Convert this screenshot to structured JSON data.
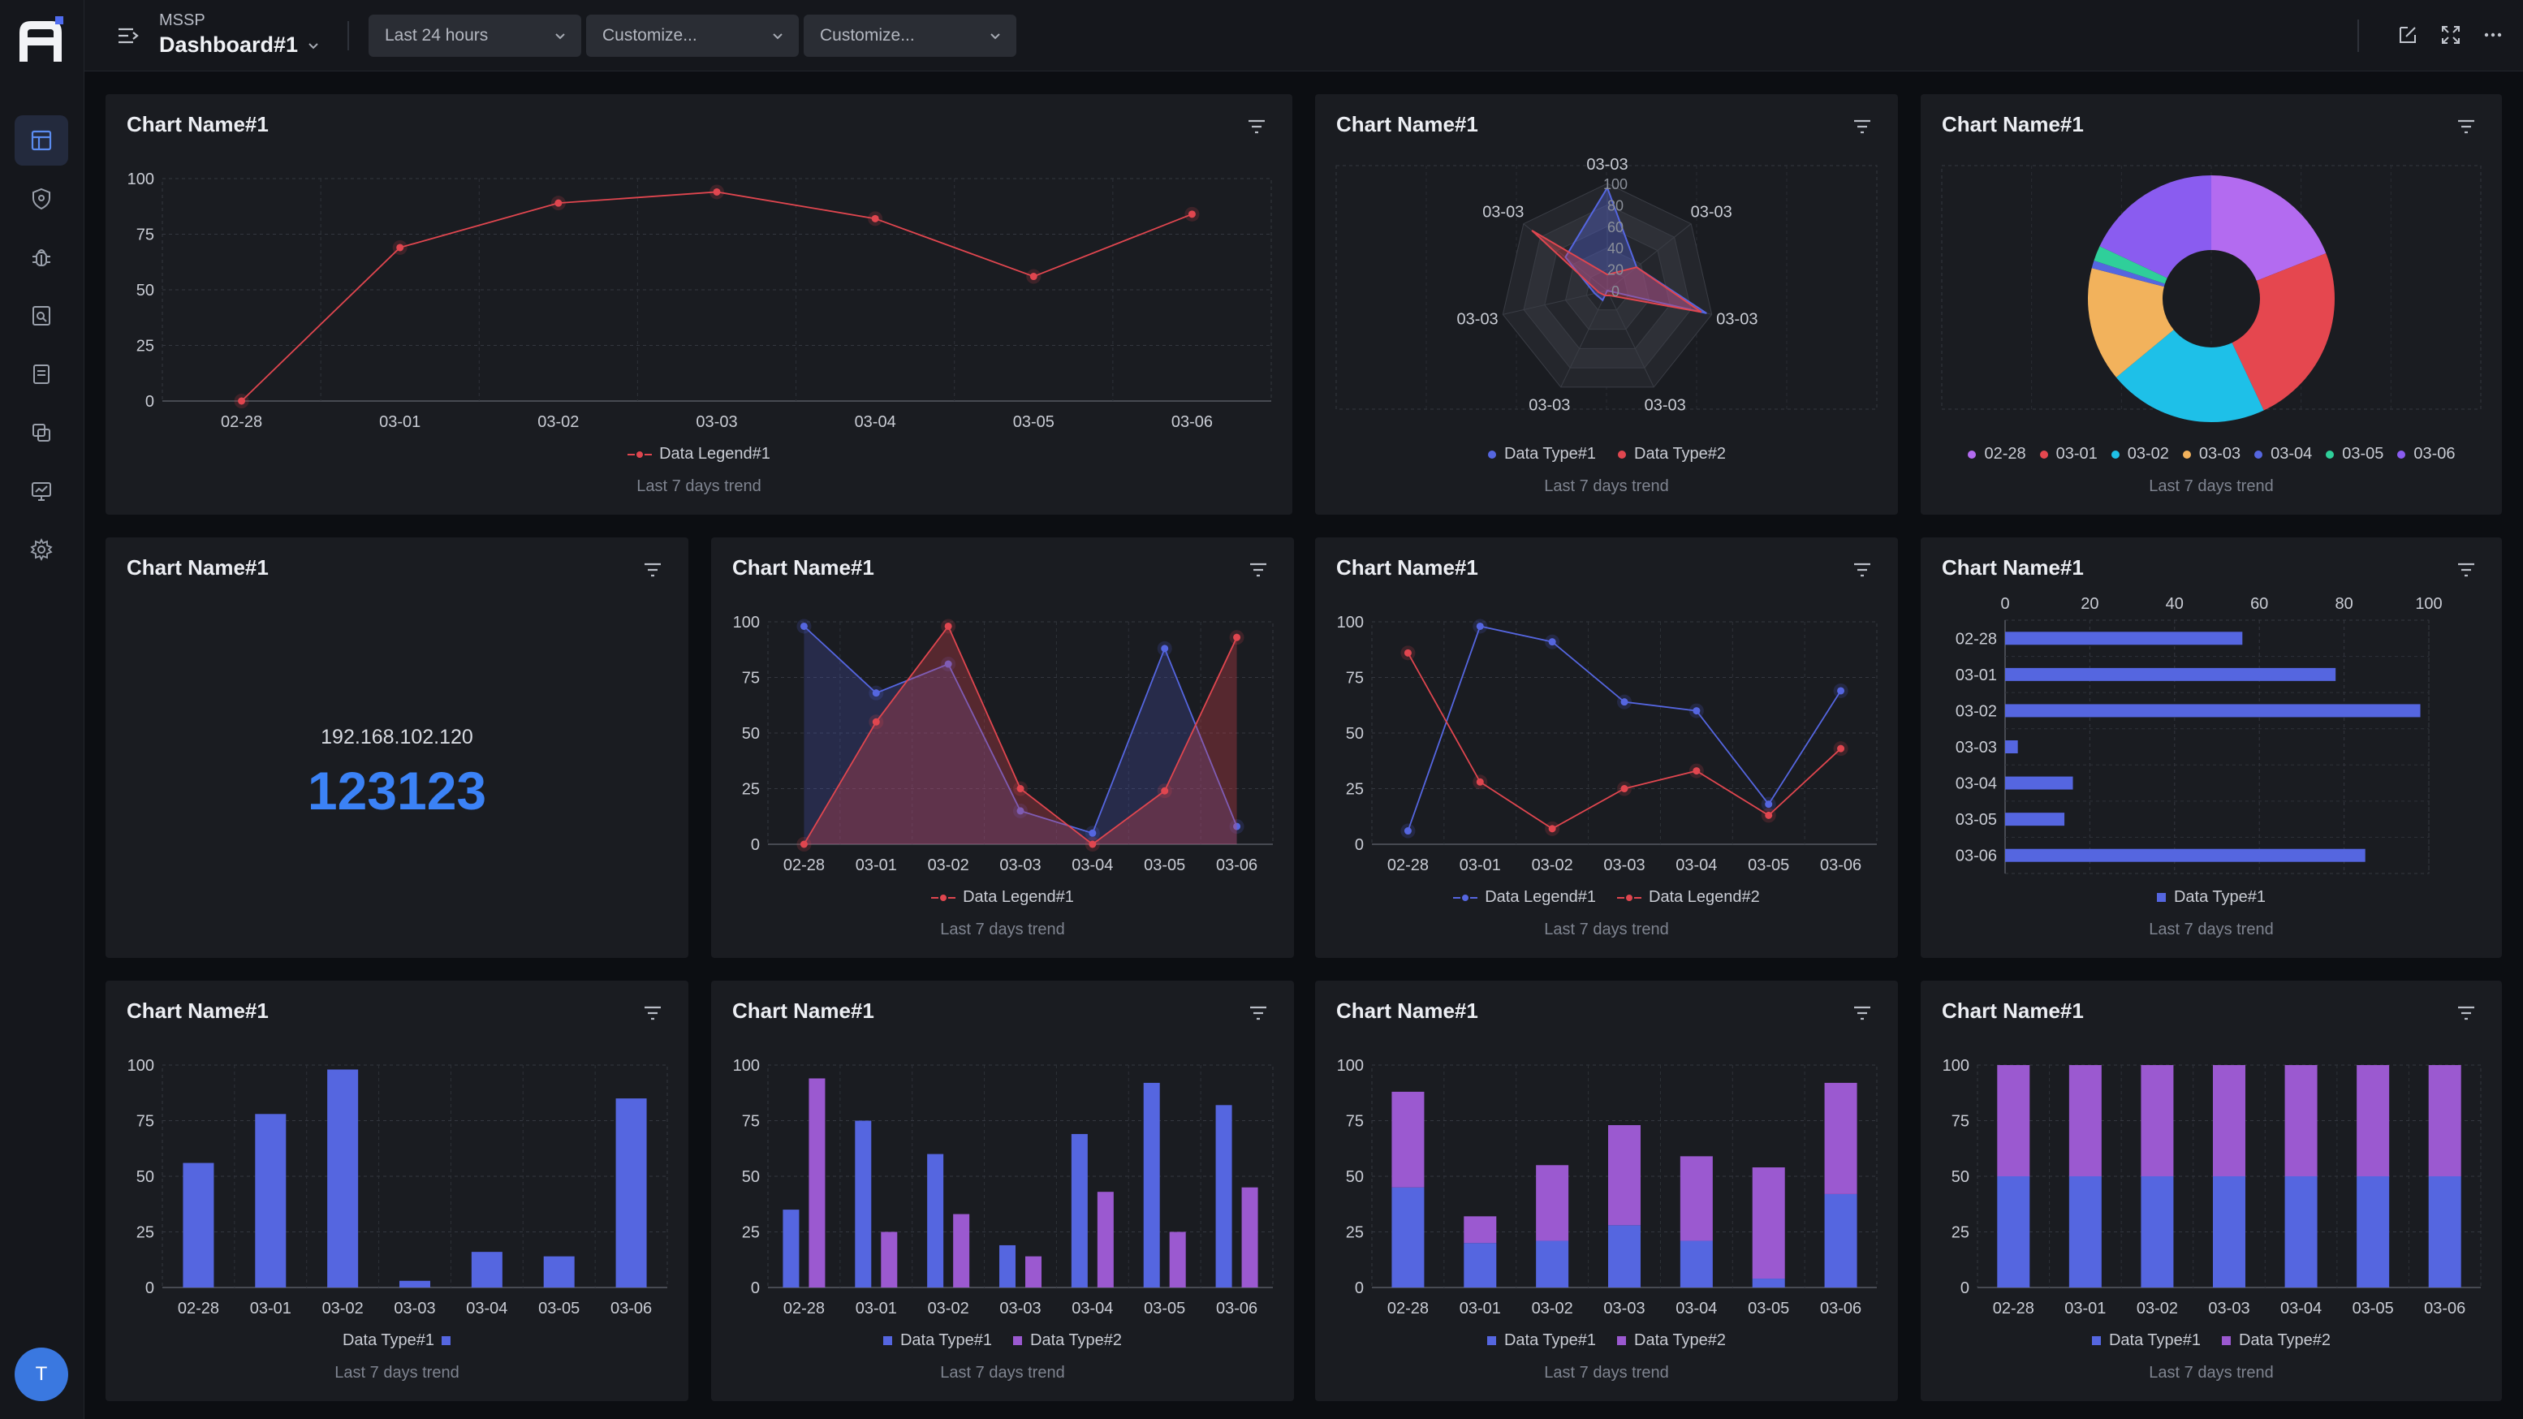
{
  "header": {
    "org": "MSSP",
    "dashboard": "Dashboard#1",
    "time_range": "Last 24 hours",
    "customize_1": "Customize...",
    "customize_2": "Customize..."
  },
  "sidebar": {
    "items": [
      "dashboard-icon",
      "shield-icon",
      "bug-icon",
      "search-doc-icon",
      "report-icon",
      "copy-icon",
      "monitor-icon",
      "settings-icon"
    ],
    "avatar": "T"
  },
  "colors": {
    "red": "#e0464f",
    "blue": "#5566e0",
    "purple": "#9b59d0",
    "bg": "#1a1c21",
    "accent": "#3b82f6"
  },
  "panels": [
    {
      "title": "Chart Name#1",
      "footer": "Last 7 days trend",
      "chart_data": {
        "type": "line",
        "categories": [
          "02-28",
          "03-01",
          "03-02",
          "03-03",
          "03-04",
          "03-05",
          "03-06"
        ],
        "series": [
          {
            "name": "Data Legend#1",
            "values": [
              0,
              69,
              89,
              94,
              82,
              56,
              84
            ]
          }
        ],
        "ylim": [
          0,
          100
        ],
        "yticks": [
          0,
          25,
          50,
          75,
          100
        ]
      }
    },
    {
      "title": "Chart Name#1",
      "footer": "Last 7 days trend",
      "chart_data": {
        "type": "radar",
        "axes": [
          "03-03",
          "03-03",
          "03-03",
          "03-03",
          "03-03",
          "03-03",
          "03-03"
        ],
        "ring_labels": [
          "0",
          "20",
          "40",
          "60",
          "80",
          "100"
        ],
        "series": [
          {
            "name": "Data Type#1",
            "values": [
              96,
              35,
              95,
              0,
              10,
              12,
              50
            ]
          },
          {
            "name": "Data Type#2",
            "values": [
              15,
              35,
              90,
              5,
              5,
              8,
              90
            ]
          }
        ]
      }
    },
    {
      "title": "Chart Name#1",
      "footer": "Last 7 days trend",
      "chart_data": {
        "type": "pie",
        "categories": [
          "02-28",
          "03-01",
          "03-02",
          "03-03",
          "03-04",
          "03-05",
          "03-06"
        ],
        "values": [
          19,
          24,
          21,
          15,
          1,
          2,
          18
        ]
      }
    },
    {
      "title": "Chart Name#1",
      "ip": "192.168.102.120",
      "value": "123123"
    },
    {
      "title": "Chart Name#1",
      "footer": "Last 7 days trend",
      "chart_data": {
        "type": "area",
        "categories": [
          "02-28",
          "03-01",
          "03-02",
          "03-03",
          "03-04",
          "03-05",
          "03-06"
        ],
        "series": [
          {
            "name": "",
            "values": [
              98,
              68,
              81,
              15,
              5,
              88,
              8
            ]
          },
          {
            "name": "Data Legend#1",
            "values": [
              0,
              55,
              98,
              25,
              0,
              24,
              93
            ]
          }
        ],
        "legend": [
          "Data Legend#1"
        ],
        "ylim": [
          0,
          100
        ],
        "yticks": [
          0,
          25,
          50,
          75,
          100
        ]
      }
    },
    {
      "title": "Chart Name#1",
      "footer": "Last 7 days trend",
      "chart_data": {
        "type": "line",
        "categories": [
          "02-28",
          "03-01",
          "03-02",
          "03-03",
          "03-04",
          "03-05",
          "03-06"
        ],
        "series": [
          {
            "name": "Data Legend#1",
            "values": [
              6,
              98,
              91,
              64,
              60,
              18,
              69
            ]
          },
          {
            "name": "Data Legend#2",
            "values": [
              86,
              28,
              7,
              25,
              33,
              13,
              43
            ]
          }
        ],
        "ylim": [
          0,
          100
        ],
        "yticks": [
          0,
          25,
          50,
          75,
          100
        ]
      }
    },
    {
      "title": "Chart Name#1",
      "footer": "Last 7 days trend",
      "chart_data": {
        "type": "hbar",
        "categories": [
          "02-28",
          "03-01",
          "03-02",
          "03-03",
          "03-04",
          "03-05",
          "03-06"
        ],
        "series": [
          {
            "name": "Data Type#1",
            "values": [
              56,
              78,
              98,
              3,
              16,
              14,
              85
            ]
          }
        ],
        "xlim": [
          0,
          100
        ],
        "xticks": [
          0,
          20,
          40,
          60,
          80,
          100
        ]
      }
    },
    {
      "title": "Chart Name#1",
      "footer": "Last 7 days trend",
      "chart_data": {
        "type": "bar",
        "categories": [
          "02-28",
          "03-01",
          "03-02",
          "03-03",
          "03-04",
          "03-05",
          "03-06"
        ],
        "series": [
          {
            "name": "Data Type#1",
            "values": [
              56,
              78,
              98,
              3,
              16,
              14,
              85
            ]
          }
        ],
        "ylim": [
          0,
          100
        ],
        "yticks": [
          0,
          25,
          50,
          75,
          100
        ]
      }
    },
    {
      "title": "Chart Name#1",
      "footer": "Last 7 days trend",
      "chart_data": {
        "type": "bar",
        "categories": [
          "02-28",
          "03-01",
          "03-02",
          "03-03",
          "03-04",
          "03-05",
          "03-06"
        ],
        "series": [
          {
            "name": "Data Type#1",
            "values": [
              35,
              75,
              60,
              19,
              69,
              92,
              82
            ]
          },
          {
            "name": "Data Type#2",
            "values": [
              94,
              25,
              33,
              14,
              43,
              25,
              45
            ]
          }
        ],
        "ylim": [
          0,
          100
        ],
        "yticks": [
          0,
          25,
          50,
          75,
          100
        ]
      }
    },
    {
      "title": "Chart Name#1",
      "footer": "Last 7 days trend",
      "chart_data": {
        "type": "stacked-bar",
        "categories": [
          "02-28",
          "03-01",
          "03-02",
          "03-03",
          "03-04",
          "03-05",
          "03-06"
        ],
        "series": [
          {
            "name": "Data Type#1",
            "values": [
              45,
              20,
              21,
              28,
              21,
              4,
              42
            ]
          },
          {
            "name": "Data Type#2",
            "values": [
              43,
              12,
              34,
              45,
              38,
              50,
              50
            ]
          }
        ],
        "ylim": [
          0,
          100
        ],
        "yticks": [
          0,
          25,
          50,
          75,
          100
        ]
      }
    },
    {
      "title": "Chart Name#1",
      "footer": "Last 7 days trend",
      "chart_data": {
        "type": "stacked-bar",
        "categories": [
          "02-28",
          "03-01",
          "03-02",
          "03-03",
          "03-04",
          "03-05",
          "03-06"
        ],
        "series": [
          {
            "name": "Data Type#1",
            "values": [
              50,
              50,
              50,
              50,
              50,
              50,
              50
            ]
          },
          {
            "name": "Data Type#2",
            "values": [
              50,
              50,
              50,
              50,
              50,
              50,
              50
            ]
          }
        ],
        "ylim": [
          0,
          100
        ],
        "yticks": [
          0,
          25,
          50,
          75,
          100
        ]
      }
    }
  ]
}
